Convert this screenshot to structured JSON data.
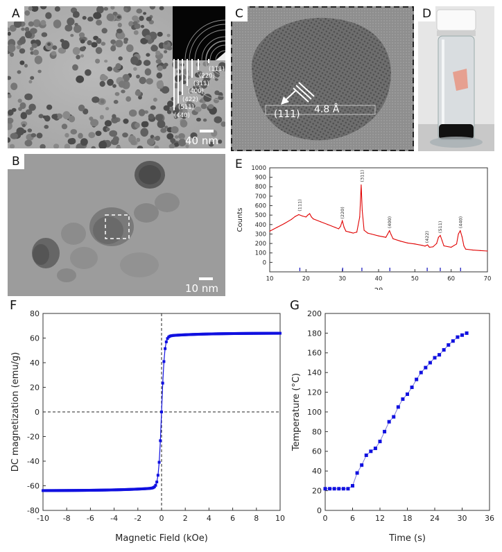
{
  "panels": {
    "A": {
      "label": "A",
      "scale": "40 nm",
      "rings": [
        "(111)",
        "(220)",
        "(311)",
        "(400)",
        "(422)",
        "(511)",
        "(440)"
      ]
    },
    "B": {
      "label": "B",
      "scale": "10 nm"
    },
    "C": {
      "label": "C",
      "plane": "(111)",
      "spacing": "4.8 Å"
    },
    "D": {
      "label": "D"
    },
    "E": {
      "label": "E"
    },
    "F": {
      "label": "F"
    },
    "G": {
      "label": "G"
    }
  },
  "colors": {
    "xrd": "#e00000",
    "mag": "#1010e0",
    "temp": "#1010e0",
    "ref_ticks": "#2020c0"
  },
  "chart_data": [
    {
      "id": "E",
      "type": "line",
      "xlabel": "2θ",
      "ylabel": "Counts",
      "xlim": [
        10,
        70
      ],
      "ylim": [
        -100,
        1000
      ],
      "xticks": [
        10,
        20,
        30,
        40,
        50,
        60,
        70
      ],
      "yticks": [
        0,
        100,
        200,
        300,
        400,
        500,
        600,
        700,
        800,
        900,
        1000
      ],
      "grid": false,
      "series": [
        {
          "x": [
            10,
            12,
            14,
            16,
            17,
            18,
            19,
            20,
            20.5,
            21,
            21.5,
            22,
            24,
            26,
            28,
            29,
            29.5,
            30,
            30.5,
            31,
            32,
            33,
            34,
            34.8,
            35.2,
            35.5,
            36,
            37,
            38,
            40,
            42,
            42.5,
            43,
            43.5,
            44,
            46,
            48,
            50,
            52,
            52.8,
            53.5,
            54,
            55,
            56,
            56.5,
            57,
            57.5,
            58,
            60,
            61.5,
            62,
            62.5,
            63,
            63.5,
            64,
            66,
            68,
            70
          ],
          "y": [
            330,
            370,
            410,
            455,
            485,
            505,
            490,
            480,
            500,
            515,
            480,
            460,
            430,
            400,
            370,
            355,
            380,
            440,
            370,
            330,
            320,
            310,
            320,
            480,
            820,
            550,
            340,
            310,
            300,
            280,
            265,
            300,
            335,
            290,
            250,
            225,
            205,
            195,
            180,
            172,
            185,
            160,
            165,
            200,
            265,
            285,
            230,
            175,
            160,
            195,
            300,
            335,
            270,
            175,
            140,
            130,
            125,
            120
          ]
        }
      ],
      "peak_labels": [
        {
          "x": 18.3,
          "y": 540,
          "text": "(111)"
        },
        {
          "x": 30.1,
          "y": 460,
          "text": "(220)"
        },
        {
          "x": 35.5,
          "y": 850,
          "text": "(311)"
        },
        {
          "x": 43.1,
          "y": 360,
          "text": "(400)"
        },
        {
          "x": 53.4,
          "y": 205,
          "text": "(422)"
        },
        {
          "x": 57.0,
          "y": 310,
          "text": "(511)"
        },
        {
          "x": 62.6,
          "y": 360,
          "text": "(440)"
        }
      ],
      "reference_ticks": [
        18.3,
        30.1,
        35.4,
        43.1,
        53.4,
        57.0,
        62.6
      ]
    },
    {
      "id": "F",
      "type": "scatter",
      "xlabel": "Magnetic Field (kOe)",
      "ylabel": "DC magnetization (emu/g)",
      "xlim": [
        -10,
        10
      ],
      "ylim": [
        -80,
        80
      ],
      "xticks": [
        -10,
        -8,
        -6,
        -4,
        -2,
        0,
        2,
        4,
        6,
        8,
        10
      ],
      "yticks": [
        -80,
        -60,
        -40,
        -20,
        0,
        20,
        40,
        60,
        80
      ],
      "grid": false,
      "reference_lines": {
        "x": 0,
        "y": 0
      },
      "model": {
        "ms": 64,
        "a": 0.25
      }
    },
    {
      "id": "G",
      "type": "line",
      "xlabel": "Time (s)",
      "ylabel": "Temperature (°C)",
      "xlim": [
        0,
        36
      ],
      "ylim": [
        0,
        200
      ],
      "xticks": [
        0,
        6,
        12,
        18,
        24,
        30,
        36
      ],
      "yticks": [
        0,
        20,
        40,
        60,
        80,
        100,
        120,
        140,
        160,
        180,
        200
      ],
      "grid": false,
      "series": [
        {
          "x": [
            0,
            1,
            2,
            3,
            4,
            5,
            6,
            7,
            8,
            9,
            10,
            11,
            12,
            13,
            14,
            15,
            16,
            17,
            18,
            19,
            20,
            21,
            22,
            23,
            24,
            25,
            26,
            27,
            28,
            29,
            30,
            31
          ],
          "y": [
            22,
            22,
            22,
            22,
            22,
            22,
            25,
            38,
            46,
            56,
            60,
            63,
            70,
            80,
            90,
            95,
            105,
            113,
            118,
            125,
            133,
            140,
            145,
            150,
            155,
            158,
            163,
            168,
            172,
            176,
            178,
            180
          ]
        }
      ]
    }
  ]
}
